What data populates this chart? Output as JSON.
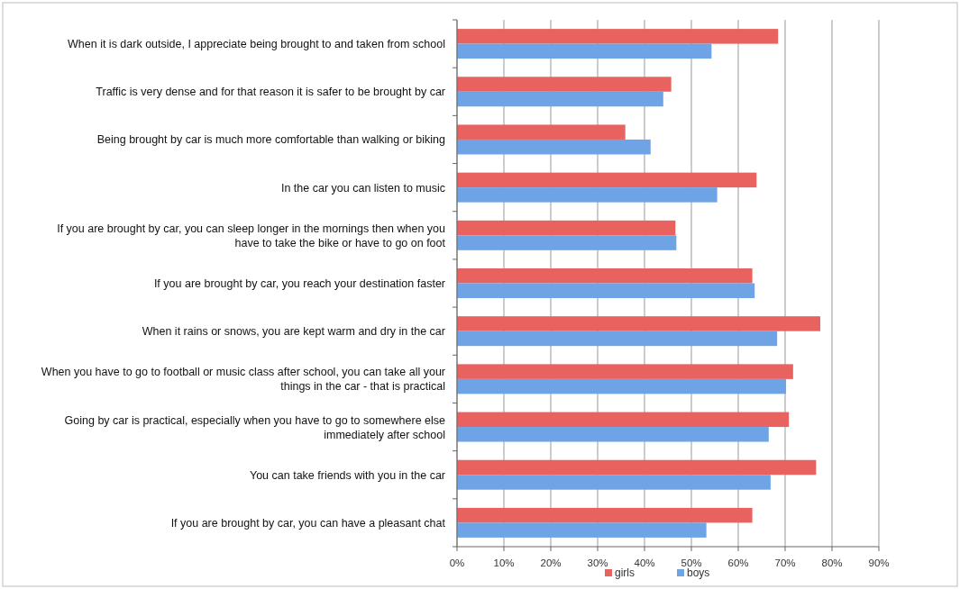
{
  "chart_data": {
    "type": "bar",
    "orientation": "horizontal",
    "categories": [
      "When it is dark outside, I appreciate being brought to and taken from school",
      "Traffic is very dense and for that reason it is safer to be brought by car",
      "Being brought by car is much more comfortable than walking or biking",
      "In the car you can listen to music",
      "If you are brought by car, you can sleep longer in the mornings then when you have to take the bike or have to go on foot",
      "If you are brought by car, you reach your destination faster",
      "When it rains or snows, you are kept warm and dry in the car",
      "When you have to go to football or music class after school, you can take all your things in the car - that is practical",
      "Going by car is practical, especially when you have to go to somewhere else immediately after school",
      "You can take friends with you in the car",
      "If you are brought by car, you can have a pleasant chat"
    ],
    "series": [
      {
        "name": "girls",
        "color": "#e8625f",
        "values": [
          68.5,
          45.7,
          35.9,
          63.9,
          46.6,
          63.0,
          77.5,
          71.7,
          70.8,
          76.6,
          63.0
        ]
      },
      {
        "name": "boys",
        "color": "#6ea3e6",
        "values": [
          54.3,
          44.0,
          41.3,
          55.5,
          46.8,
          63.5,
          68.3,
          70.2,
          66.5,
          66.9,
          53.2
        ]
      }
    ],
    "xlim": [
      0,
      90
    ],
    "xticks": [
      {
        "value": 0,
        "label": "0%"
      },
      {
        "value": 10,
        "label": "10%"
      },
      {
        "value": 20,
        "label": "20%"
      },
      {
        "value": 30,
        "label": "30%"
      },
      {
        "value": 40,
        "label": "40%"
      },
      {
        "value": 50,
        "label": "50%"
      },
      {
        "value": 60,
        "label": "60%"
      },
      {
        "value": 70,
        "label": "70%"
      },
      {
        "value": 80,
        "label": "80%"
      },
      {
        "value": 90,
        "label": "90%"
      }
    ],
    "grid": "x",
    "legend": "bottom"
  }
}
